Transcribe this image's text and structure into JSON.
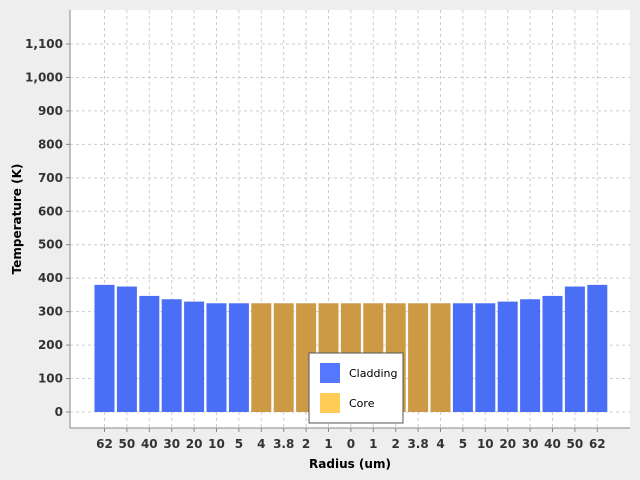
{
  "chart_data": {
    "type": "bar",
    "title": "",
    "xlabel": "Radius (um)",
    "ylabel": "Temperature (K)",
    "ylim": [
      0,
      1100
    ],
    "yticks": [
      0,
      100,
      200,
      300,
      400,
      500,
      600,
      700,
      800,
      900,
      1000,
      1100
    ],
    "ytick_labels": [
      "0",
      "100",
      "200",
      "300",
      "400",
      "500",
      "600",
      "700",
      "800",
      "900",
      "1,000",
      "1,100"
    ],
    "grid": true,
    "legend_position": "bottom-center",
    "categories": [
      "62",
      "50",
      "40",
      "30",
      "20",
      "10",
      "5",
      "4",
      "3.8",
      "2",
      "1",
      "0",
      "1",
      "2",
      "3.8",
      "4",
      "5",
      "10",
      "20",
      "30",
      "40",
      "50",
      "62"
    ],
    "values": [
      380,
      375,
      347,
      337,
      330,
      325,
      325,
      325,
      325,
      325,
      325,
      325,
      325,
      325,
      325,
      325,
      325,
      325,
      330,
      337,
      347,
      375,
      380
    ],
    "material": [
      "Cladding",
      "Cladding",
      "Cladding",
      "Cladding",
      "Cladding",
      "Cladding",
      "Cladding",
      "Core",
      "Core",
      "Core",
      "Core",
      "Core",
      "Core",
      "Core",
      "Core",
      "Core",
      "Cladding",
      "Cladding",
      "Cladding",
      "Cladding",
      "Cladding",
      "Cladding",
      "Cladding"
    ],
    "series": [
      {
        "name": "Cladding",
        "color": "#5577ff"
      },
      {
        "name": "Core",
        "color": "#ffcc55"
      }
    ],
    "bar_colors": {
      "Cladding": "#4a6ef5",
      "Core": "#cc9944"
    }
  }
}
